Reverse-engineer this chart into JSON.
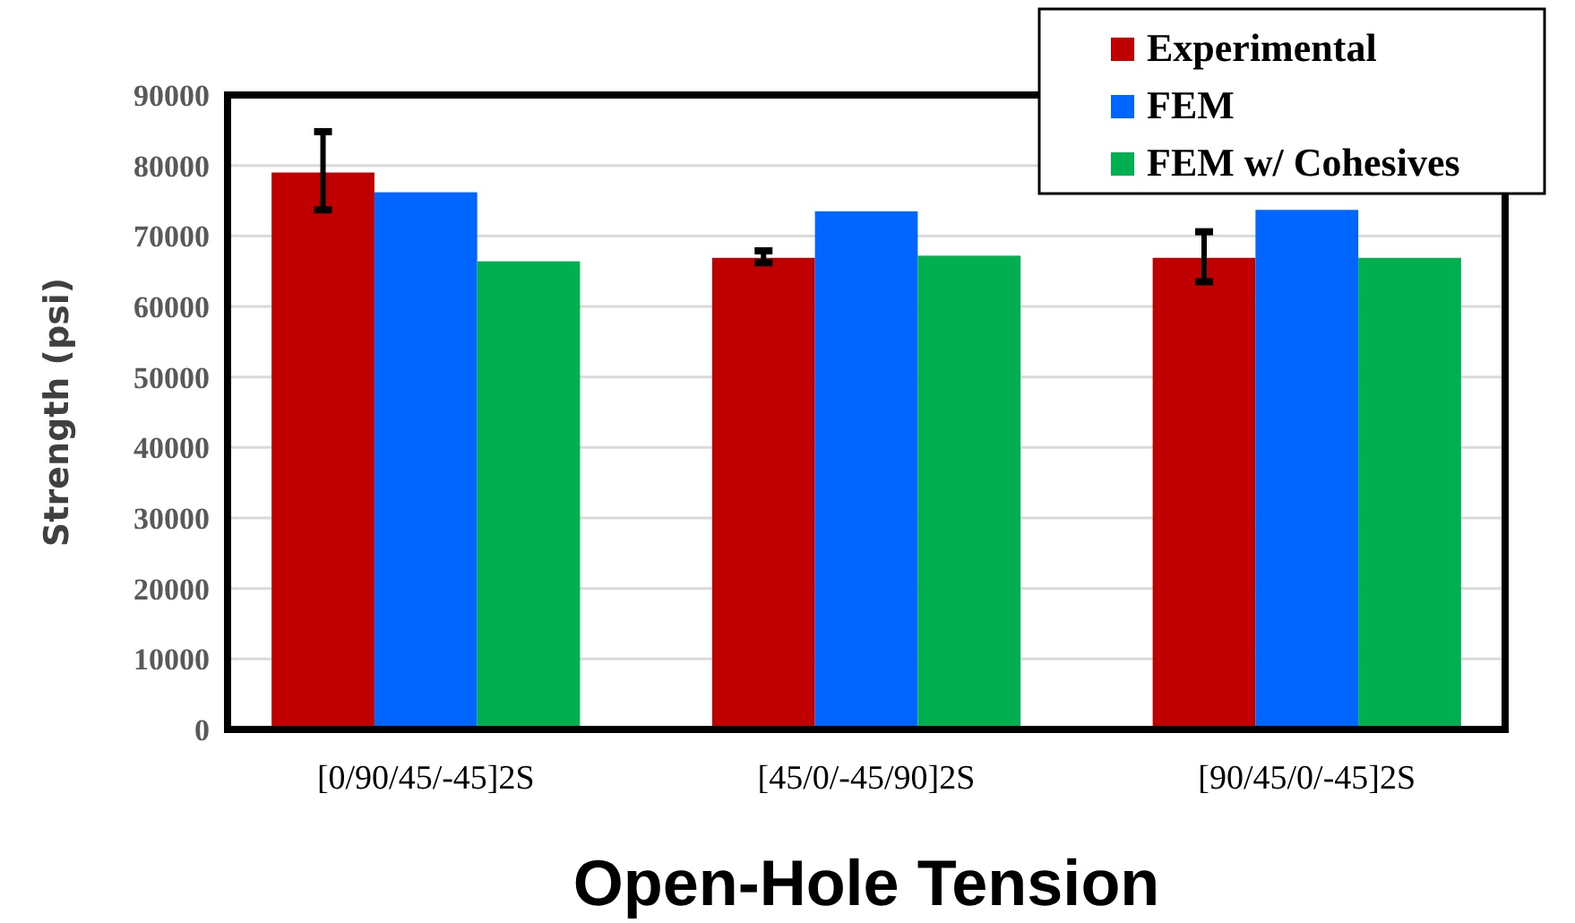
{
  "chart_data": {
    "type": "bar",
    "xlabel": "Open-Hole Tension",
    "ylabel": "Strength (psi)",
    "categories": [
      "[0/90/45/-45]2S",
      "[45/0/-45/90]2S",
      "[90/45/0/-45]2S"
    ],
    "series": [
      {
        "name": "Experimental",
        "color": "#c00000",
        "values": [
          79000,
          66900,
          66900
        ],
        "errors": [
          [
            73700,
            84800
          ],
          [
            66200,
            67900
          ],
          [
            63500,
            70600
          ]
        ]
      },
      {
        "name": "FEM",
        "color": "#0066ff",
        "values": [
          76200,
          73500,
          73700
        ]
      },
      {
        "name": "FEM w/ Cohesives",
        "color": "#00b050",
        "values": [
          66400,
          67200,
          66900
        ]
      }
    ],
    "ylim": [
      0,
      90000
    ],
    "yticks": [
      0,
      10000,
      20000,
      30000,
      40000,
      50000,
      60000,
      70000,
      80000,
      90000
    ],
    "grid": "y",
    "legend": "top right"
  }
}
